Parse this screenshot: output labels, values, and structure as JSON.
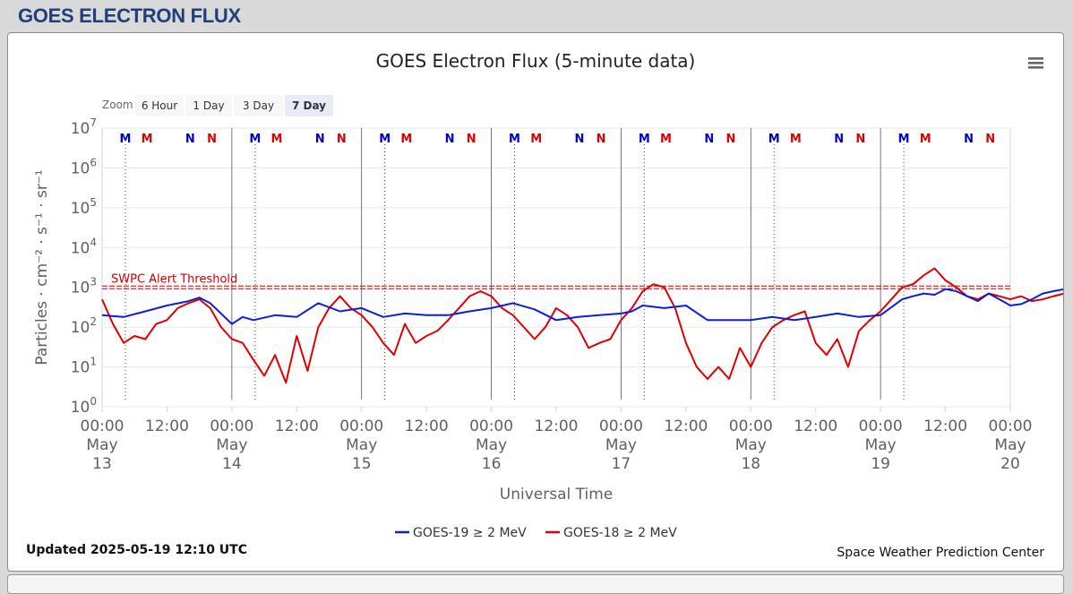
{
  "page": {
    "header": "GOES ELECTRON FLUX"
  },
  "chart_data": {
    "type": "line",
    "title": "GOES Electron Flux (5-minute data)",
    "xlabel": "Universal Time",
    "ylabel": "Particles · cm⁻² · s⁻¹ · sr⁻¹",
    "yscale": "log",
    "ylim": [
      1,
      10000000
    ],
    "y_ticks": [
      {
        "base": "10",
        "exp": "0"
      },
      {
        "base": "10",
        "exp": "1"
      },
      {
        "base": "10",
        "exp": "2"
      },
      {
        "base": "10",
        "exp": "3"
      },
      {
        "base": "10",
        "exp": "4"
      },
      {
        "base": "10",
        "exp": "5"
      },
      {
        "base": "10",
        "exp": "6"
      },
      {
        "base": "10",
        "exp": "7"
      }
    ],
    "xlim": [
      "2025-05-13 00:00",
      "2025-05-20 00:00"
    ],
    "x_ticks": [
      {
        "time": "00:00",
        "month": "May",
        "day": "13"
      },
      {
        "time": "12:00"
      },
      {
        "time": "00:00",
        "month": "May",
        "day": "14"
      },
      {
        "time": "12:00"
      },
      {
        "time": "00:00",
        "month": "May",
        "day": "15"
      },
      {
        "time": "12:00"
      },
      {
        "time": "00:00",
        "month": "May",
        "day": "16"
      },
      {
        "time": "12:00"
      },
      {
        "time": "00:00",
        "month": "May",
        "day": "17"
      },
      {
        "time": "12:00"
      },
      {
        "time": "00:00",
        "month": "May",
        "day": "18"
      },
      {
        "time": "12:00"
      },
      {
        "time": "00:00",
        "month": "May",
        "day": "19"
      },
      {
        "time": "12:00"
      },
      {
        "time": "00:00",
        "month": "May",
        "day": "20"
      }
    ],
    "grid": true,
    "threshold": {
      "label": "SWPC Alert Threshold",
      "value": 1000,
      "color": "#cc0000"
    },
    "day_markers": [
      {
        "label": "M",
        "color": "#0000cc",
        "hours": 4.3
      },
      {
        "label": "M",
        "color": "#dd0000",
        "hours": 8.3
      },
      {
        "label": "N",
        "color": "#0000cc",
        "hours": 16.3
      },
      {
        "label": "N",
        "color": "#dd0000",
        "hours": 20.3
      }
    ],
    "series": [
      {
        "name": "GOES-19 ≥ 2 MeV",
        "color": "#0b1fd9",
        "x_hours": [
          0,
          4,
          8,
          12,
          16,
          18,
          20,
          24,
          26,
          28,
          32,
          36,
          40,
          44,
          48,
          52,
          56,
          60,
          64,
          68,
          72,
          76,
          80,
          84,
          88,
          92,
          96,
          98,
          100,
          104,
          108,
          112,
          116,
          120,
          124,
          128,
          132,
          136,
          140,
          144,
          148,
          150,
          152,
          154,
          156,
          158,
          160,
          162,
          164,
          166,
          168,
          170,
          172,
          174,
          176,
          178,
          180
        ],
        "values": [
          200,
          180,
          250,
          350,
          450,
          550,
          400,
          120,
          180,
          150,
          200,
          180,
          400,
          250,
          300,
          180,
          220,
          200,
          200,
          250,
          300,
          400,
          280,
          150,
          180,
          200,
          220,
          250,
          350,
          300,
          350,
          150,
          150,
          150,
          180,
          150,
          180,
          220,
          180,
          200,
          500,
          600,
          700,
          650,
          900,
          800,
          600,
          450,
          700,
          500,
          350,
          380,
          500,
          700,
          800,
          900,
          900
        ]
      },
      {
        "name": "GOES-18 ≥ 2 MeV",
        "color": "#e00000",
        "x_hours": [
          0,
          2,
          4,
          6,
          8,
          10,
          12,
          14,
          16,
          18,
          20,
          22,
          24,
          26,
          28,
          30,
          32,
          34,
          36,
          38,
          40,
          42,
          44,
          46,
          48,
          50,
          52,
          54,
          56,
          58,
          60,
          62,
          64,
          66,
          68,
          70,
          72,
          74,
          76,
          78,
          80,
          82,
          84,
          86,
          88,
          90,
          92,
          94,
          96,
          98,
          100,
          102,
          104,
          106,
          108,
          110,
          112,
          114,
          116,
          118,
          120,
          122,
          124,
          126,
          128,
          130,
          132,
          134,
          136,
          138,
          140,
          142,
          144,
          146,
          148,
          150,
          152,
          154,
          156,
          158,
          160,
          162,
          164,
          166,
          168,
          170,
          172,
          174,
          176,
          178,
          180
        ],
        "values": [
          500,
          120,
          40,
          60,
          50,
          120,
          150,
          300,
          400,
          500,
          300,
          100,
          50,
          40,
          15,
          6,
          20,
          4,
          60,
          8,
          100,
          300,
          600,
          300,
          200,
          100,
          40,
          20,
          120,
          40,
          60,
          80,
          150,
          300,
          600,
          800,
          600,
          300,
          200,
          100,
          50,
          100,
          300,
          200,
          100,
          30,
          40,
          50,
          150,
          300,
          800,
          1200,
          1000,
          300,
          40,
          10,
          5,
          10,
          5,
          30,
          10,
          40,
          100,
          150,
          200,
          250,
          40,
          20,
          50,
          10,
          80,
          150,
          250,
          500,
          1000,
          1200,
          2000,
          3000,
          1500,
          1000,
          600,
          500,
          700,
          600,
          500,
          600,
          450,
          500,
          600,
          700,
          750
        ]
      }
    ],
    "legend_position": "bottom-center"
  },
  "ui": {
    "zoom_label": "Zoom",
    "zoom_buttons": [
      "6 Hour",
      "1 Day",
      "3 Day",
      "7 Day"
    ],
    "zoom_selected": "7 Day",
    "updated": "Updated 2025-05-19 12:10 UTC",
    "credit": "Space Weather Prediction Center",
    "menu_icon": "hamburger-menu-icon"
  }
}
